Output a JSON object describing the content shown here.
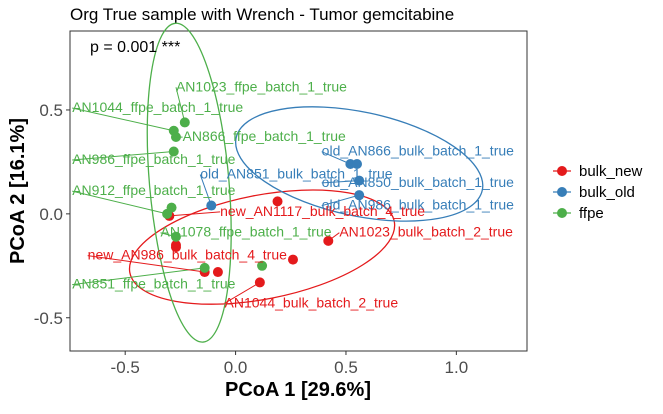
{
  "chart_data": {
    "type": "scatter",
    "title": "Org True sample with Wrench - Tumor gemcitabine",
    "annotation": "p = 0.001 ***",
    "xlabel": "PCoA 1 [29.6%]",
    "ylabel": "PCoA 2 [16.1%]",
    "xlim": [
      -0.75,
      1.32
    ],
    "ylim": [
      -0.66,
      0.88
    ],
    "xticks": [
      -0.5,
      0.0,
      0.5,
      1.0
    ],
    "xtick_labels": [
      "-0.5",
      "0.0",
      "0.5",
      "1.0"
    ],
    "yticks": [
      -0.5,
      0.0,
      0.5
    ],
    "ytick_labels": [
      "-0.5",
      "0.0",
      "0.5"
    ],
    "grid": false,
    "legend_position": "right",
    "series": [
      {
        "name": "bulk_new",
        "color": "#E41A1C",
        "points": [
          {
            "x": -0.3,
            "y": -0.01
          },
          {
            "x": -0.27,
            "y": -0.15
          },
          {
            "x": -0.27,
            "y": -0.16
          },
          {
            "x": -0.14,
            "y": -0.28
          },
          {
            "x": -0.08,
            "y": -0.28
          },
          {
            "x": 0.11,
            "y": -0.33
          },
          {
            "x": 0.19,
            "y": 0.06
          },
          {
            "x": 0.26,
            "y": -0.22
          },
          {
            "x": 0.42,
            "y": -0.13
          }
        ],
        "ellipse": {
          "cx": 0.12,
          "cy": -0.16,
          "rx": 0.61,
          "ry": 0.25,
          "angle_deg": -11
        }
      },
      {
        "name": "bulk_old",
        "color": "#377EB8",
        "points": [
          {
            "x": -0.11,
            "y": 0.04
          },
          {
            "x": 0.52,
            "y": 0.24
          },
          {
            "x": 0.55,
            "y": 0.24
          },
          {
            "x": 0.56,
            "y": 0.16
          },
          {
            "x": 0.56,
            "y": 0.09
          }
        ],
        "ellipse": {
          "cx": 0.56,
          "cy": 0.24,
          "rx": 0.57,
          "ry": 0.25,
          "angle_deg": 12
        }
      },
      {
        "name": "ffpe",
        "color": "#4DAF4A",
        "points": [
          {
            "x": -0.31,
            "y": 0.0
          },
          {
            "x": -0.29,
            "y": 0.03
          },
          {
            "x": -0.27,
            "y": -0.11
          },
          {
            "x": -0.28,
            "y": 0.3
          },
          {
            "x": -0.28,
            "y": 0.4
          },
          {
            "x": -0.27,
            "y": 0.37
          },
          {
            "x": -0.23,
            "y": 0.44
          },
          {
            "x": -0.14,
            "y": -0.26
          },
          {
            "x": 0.12,
            "y": -0.25
          }
        ],
        "ellipse": {
          "cx": -0.21,
          "cy": 0.15,
          "rx": 0.18,
          "ry": 0.77,
          "angle_deg": -5
        }
      }
    ],
    "annotations": [
      {
        "text": "AN1023_ffpe_batch_1_true",
        "series": "ffpe",
        "px": -0.23,
        "py": 0.44,
        "lx": -0.27,
        "ly": 0.59,
        "anchor": "start"
      },
      {
        "text": "AN1044_ffpe_batch_1_true",
        "series": "ffpe",
        "px": -0.28,
        "py": 0.4,
        "lx": -0.74,
        "ly": 0.49,
        "anchor": "start"
      },
      {
        "text": "AN866_ffpe_batch_1_true",
        "series": "ffpe",
        "px": -0.27,
        "py": 0.37,
        "lx": -0.24,
        "ly": 0.35,
        "anchor": "start"
      },
      {
        "text": "AN986_ffpe_batch_1_true",
        "series": "ffpe",
        "px": -0.28,
        "py": 0.3,
        "lx": -0.74,
        "ly": 0.24,
        "anchor": "start"
      },
      {
        "text": "AN912_ffpe_batch_1_true",
        "series": "ffpe",
        "px": -0.31,
        "py": 0.0,
        "lx": -0.74,
        "ly": 0.09,
        "anchor": "start"
      },
      {
        "text": "AN1078_ffpe_batch_1_true",
        "series": "ffpe",
        "px": -0.27,
        "py": -0.11,
        "lx": -0.34,
        "ly": -0.11,
        "anchor": "start"
      },
      {
        "text": "AN851_ffpe_batch_1_true",
        "series": "ffpe",
        "px": -0.14,
        "py": -0.26,
        "lx": -0.74,
        "ly": -0.36,
        "anchor": "start"
      },
      {
        "text": "old_AN851_bulk_batch_1_true",
        "series": "bulk_old",
        "px": -0.11,
        "py": 0.04,
        "lx": -0.16,
        "ly": 0.17,
        "anchor": "start"
      },
      {
        "text": "old_AN866_bulk_batch_1_true",
        "series": "bulk_old",
        "px": 0.52,
        "py": 0.24,
        "lx": 0.39,
        "ly": 0.28,
        "anchor": "start"
      },
      {
        "text": "old_AN850_bulk_batch_1_true",
        "series": "bulk_old",
        "px": 0.56,
        "py": 0.16,
        "lx": 0.39,
        "ly": 0.13,
        "anchor": "start"
      },
      {
        "text": "old_AN986_bulk_batch_1_true",
        "series": "bulk_old",
        "px": 0.56,
        "py": 0.09,
        "lx": 0.39,
        "ly": 0.02,
        "anchor": "start"
      },
      {
        "text": "new_AN1117_bulk_batch_4_true",
        "series": "bulk_new",
        "px": -0.3,
        "py": -0.01,
        "lx": -0.07,
        "ly": -0.01,
        "anchor": "start"
      },
      {
        "text": "AN1023_bulk_batch_2_true",
        "series": "bulk_new",
        "px": 0.42,
        "py": -0.13,
        "lx": 0.47,
        "ly": -0.11,
        "anchor": "start"
      },
      {
        "text": "new_AN986_bulk_batch_4_true",
        "series": "bulk_new",
        "px": -0.14,
        "py": -0.28,
        "lx": -0.67,
        "ly": -0.22,
        "anchor": "start"
      },
      {
        "text": "AN1044_bulk_batch_2_true",
        "series": "bulk_new",
        "px": 0.11,
        "py": -0.33,
        "lx": -0.05,
        "ly": -0.45,
        "anchor": "start"
      }
    ]
  }
}
